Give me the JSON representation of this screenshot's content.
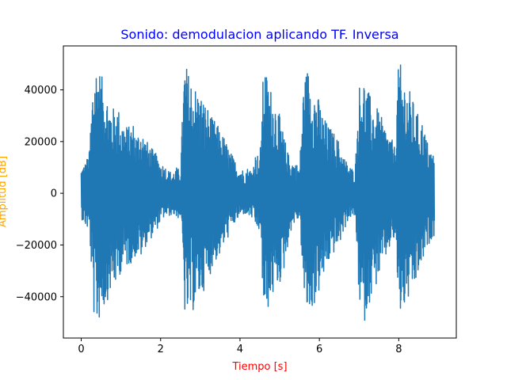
{
  "chart_data": {
    "type": "line",
    "title": "Sonido: demodulacion aplicando TF. Inversa",
    "xlabel": "Tiempo [s]",
    "ylabel": "Amplitud [dB]",
    "xlim": [
      -0.45,
      9.45
    ],
    "ylim": [
      -56000,
      57000
    ],
    "x_ticks": [
      0,
      2,
      4,
      6,
      8
    ],
    "x_tick_labels": [
      "0",
      "2",
      "4",
      "6",
      "8"
    ],
    "y_ticks": [
      -40000,
      -20000,
      0,
      20000,
      40000
    ],
    "y_tick_labels": [
      "−40000",
      "−20000",
      "0",
      "20000",
      "40000"
    ],
    "grid": false,
    "series": [
      {
        "x": [
          0.0,
          0.1,
          0.2,
          0.3,
          0.4,
          0.5,
          0.6,
          0.7,
          0.8,
          0.9,
          1.0,
          1.1,
          1.2,
          1.3,
          1.4,
          1.5,
          1.6,
          1.7,
          1.8,
          1.9,
          2.0,
          2.1,
          2.2,
          2.3,
          2.4,
          2.5,
          2.6,
          2.7,
          2.8,
          2.9,
          3.0,
          3.1,
          3.2,
          3.3,
          3.4,
          3.5,
          3.6,
          3.7,
          3.8,
          3.9,
          4.0,
          4.1,
          4.2,
          4.3,
          4.4,
          4.5,
          4.6,
          4.7,
          4.8,
          4.9,
          5.0,
          5.1,
          5.2,
          5.3,
          5.4,
          5.5,
          5.6,
          5.7,
          5.8,
          5.9,
          6.0,
          6.1,
          6.2,
          6.3,
          6.4,
          6.5,
          6.6,
          6.7,
          6.8,
          6.9,
          7.0,
          7.1,
          7.2,
          7.3,
          7.4,
          7.5,
          7.6,
          7.7,
          7.8,
          7.9,
          8.0,
          8.1,
          8.2,
          8.3,
          8.4,
          8.5,
          8.6,
          8.7,
          8.8,
          8.9
        ],
        "upper": [
          10000,
          12000,
          16000,
          47000,
          52000,
          46000,
          42000,
          36000,
          33000,
          35000,
          30000,
          27000,
          26000,
          28000,
          23000,
          26000,
          22000,
          19000,
          17000,
          15000,
          12000,
          11000,
          9000,
          8000,
          10000,
          9000,
          52000,
          47000,
          44000,
          41000,
          39000,
          36000,
          33000,
          29000,
          28000,
          24000,
          22000,
          18000,
          15000,
          12000,
          10000,
          9000,
          10000,
          9000,
          16000,
          14000,
          52000,
          44000,
          40000,
          36000,
          30000,
          23000,
          16000,
          13000,
          12000,
          10000,
          43000,
          49000,
          45000,
          40000,
          36000,
          30000,
          27000,
          25000,
          23000,
          20000,
          15000,
          12000,
          10000,
          9000,
          42000,
          46000,
          41000,
          37000,
          34000,
          32000,
          28000,
          25000,
          22000,
          18000,
          52000,
          47000,
          42000,
          39000,
          34000,
          30000,
          28000,
          21000,
          17000,
          15000
        ],
        "lower": [
          -10000,
          -13000,
          -15000,
          -47000,
          -52000,
          -46000,
          -44000,
          -39000,
          -37000,
          -35000,
          -30000,
          -29000,
          -28000,
          -26000,
          -24000,
          -25000,
          -21000,
          -18000,
          -17000,
          -14000,
          -11000,
          -9000,
          -9000,
          -8000,
          -10000,
          -9000,
          -47000,
          -49000,
          -46000,
          -43000,
          -40000,
          -37000,
          -34000,
          -28000,
          -26000,
          -24000,
          -20000,
          -17000,
          -13000,
          -11000,
          -9000,
          -8000,
          -9000,
          -10000,
          -14000,
          -15000,
          -51000,
          -45000,
          -41000,
          -37000,
          -35000,
          -30000,
          -20000,
          -13000,
          -11000,
          -10000,
          -42000,
          -48000,
          -46000,
          -42000,
          -38000,
          -33000,
          -28000,
          -25000,
          -22000,
          -20000,
          -15000,
          -11000,
          -9000,
          -10000,
          -44000,
          -52000,
          -45000,
          -40000,
          -37000,
          -32000,
          -28000,
          -24000,
          -20000,
          -18000,
          -48000,
          -46000,
          -43000,
          -40000,
          -37000,
          -31000,
          -27000,
          -22000,
          -18000,
          -16000
        ]
      }
    ],
    "color": "#1f77b4",
    "title_color": "#0000ff",
    "xlabel_color": "#ff0000",
    "ylabel_color": "#ffa500"
  }
}
